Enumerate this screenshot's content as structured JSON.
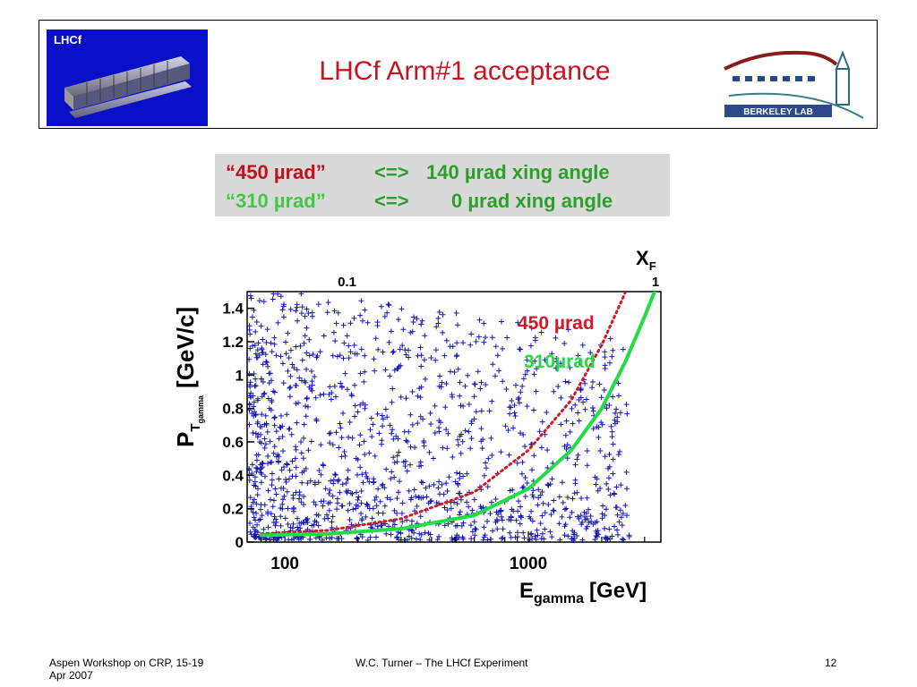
{
  "header": {
    "logo_text": "LHCf",
    "title": "LHCf Arm#1 acceptance",
    "berkeley_logo_text": "BERKELEY LAB"
  },
  "info_box": {
    "line1": {
      "label": "“450 µrad”",
      "arrow": "<=>",
      "value": "140 µrad xing angle"
    },
    "line2": {
      "label": "“310 µrad”",
      "arrow": "<=>",
      "value": "0 µrad xing angle"
    }
  },
  "chart_data": {
    "type": "scatter",
    "title": "",
    "xlabel": "E",
    "xlabel_sub": "gamma",
    "xlabel_unit": "[GeV]",
    "ylabel": "P",
    "ylabel_sub": "T",
    "ylabel_subsub": "gamma",
    "ylabel_unit": "[GeV/c]",
    "x_scale": "log",
    "xlim": [
      70,
      3500
    ],
    "ylim": [
      0,
      1.5
    ],
    "x_ticks": [
      "100",
      "1000"
    ],
    "y_ticks": [
      "0",
      "0.2",
      "0.4",
      "0.6",
      "0.8",
      "1",
      "1.2",
      "1.4"
    ],
    "top_axis_label": "X",
    "top_axis_label_sub": "F",
    "top_ticks": [
      "0.1",
      "1"
    ],
    "series": [
      {
        "name": "450 µrad",
        "color": "#d01828",
        "style": "dotted",
        "x": [
          80,
          150,
          300,
          600,
          1000,
          1500,
          2000,
          2600
        ],
        "y": [
          0.05,
          0.07,
          0.14,
          0.3,
          0.55,
          0.85,
          1.18,
          1.55
        ]
      },
      {
        "name": "310µrad",
        "color": "#22dd44",
        "style": "solid",
        "x": [
          80,
          150,
          300,
          600,
          1000,
          1500,
          2000,
          2500,
          3000,
          3400
        ],
        "y": [
          0.04,
          0.05,
          0.08,
          0.16,
          0.32,
          0.55,
          0.8,
          1.08,
          1.35,
          1.55
        ]
      }
    ],
    "scatter_color": "#1414b4",
    "scatter_marker": "+"
  },
  "footer": {
    "left_line1": "Aspen Workshop on CRP, 15-19",
    "left_line2": "Apr 2007",
    "center": "W.C. Turner – The LHCf Experiment",
    "page_number": "12"
  }
}
